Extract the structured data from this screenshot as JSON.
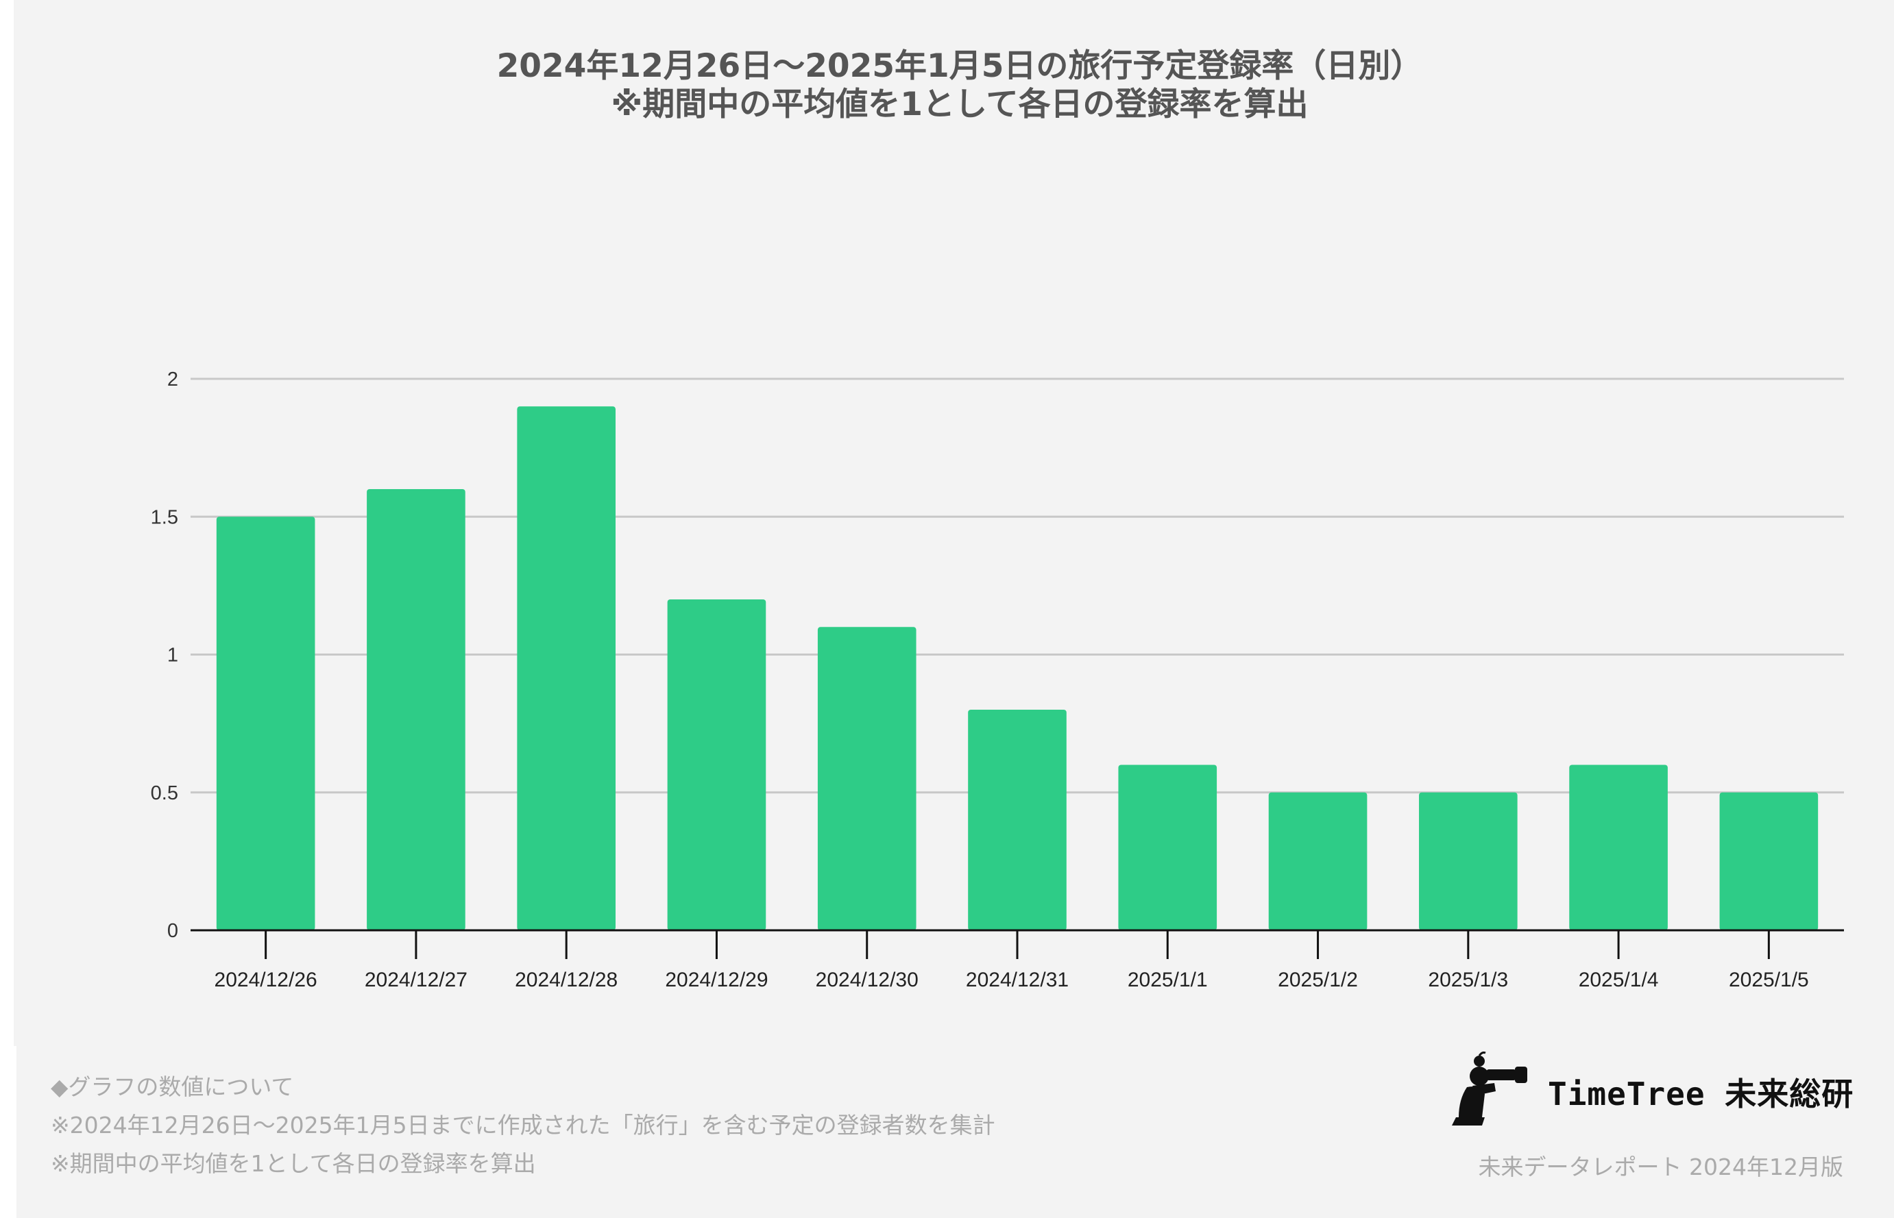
{
  "chart_data": {
    "type": "bar",
    "title": [
      "2024年12月26日〜2025年1月5日の旅行予定登録率（日別）",
      "※期間中の平均値を1として各日の登録率を算出"
    ],
    "categories": [
      "2024/12/26",
      "2024/12/27",
      "2024/12/28",
      "2024/12/29",
      "2024/12/30",
      "2024/12/31",
      "2025/1/1",
      "2025/1/2",
      "2025/1/3",
      "2025/1/4",
      "2025/1/5"
    ],
    "values": [
      1.5,
      1.6,
      1.9,
      1.2,
      1.1,
      0.8,
      0.6,
      0.5,
      0.5,
      0.6,
      0.5
    ],
    "ylim": [
      0,
      2
    ],
    "yticks": [
      "0",
      "0.5",
      "1",
      "1.5",
      "2"
    ],
    "xlabel": "",
    "ylabel": "",
    "grid": true,
    "bar_color": "#2ecc87"
  },
  "notes": {
    "heading": "◆グラフの数値について",
    "line1": "※2024年12月26日〜2025年1月5日までに作成された「旅行」を含む予定の登録者数を集計",
    "line2": "※期間中の平均値を1として各日の登録率を算出"
  },
  "brand": {
    "name": "TimeTree 未来総研",
    "logo_icon": "person-with-binoculars-icon",
    "report_label": "未来データレポート 2024年12月版"
  }
}
